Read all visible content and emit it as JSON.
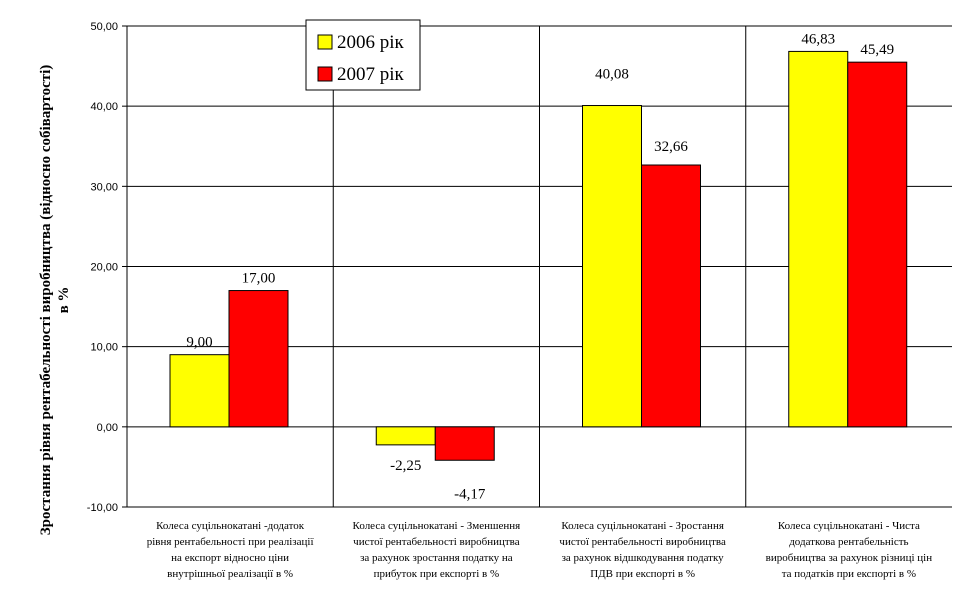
{
  "chart_data": {
    "type": "bar",
    "title": "",
    "ylabel": "Зростання рівня рентабельності виробництва (відносно собівартості) в %",
    "ylabel_lines": [
      "Зростання рівня рентабельності виробництва (відносно собівартості)",
      "в %"
    ],
    "xlabel": "",
    "ylim": [
      -10,
      50
    ],
    "yticks": [
      "-10,00",
      "0,00",
      "10,00",
      "20,00",
      "30,00",
      "40,00",
      "50,00"
    ],
    "grid": true,
    "legend_position": "top-left",
    "categories": [
      [
        "Колеса суцільнокатані -додаток",
        "рівня рентабельності при реалізації",
        "на експорт відносно ціни",
        "внутрішньої реалізації в %"
      ],
      [
        "Колеса суцільнокатані - Зменшення",
        "чистої рентабельності виробництва",
        "за рахунок зростання податку на",
        "прибуток при експорті в %"
      ],
      [
        "Колеса суцільнокатані - Зростання",
        "чистої рентабельності виробництва",
        "за рахунок відшкодування податку",
        "ПДВ при експорті в %"
      ],
      [
        "Колеса суцільнокатані - Чиста",
        "додаткова рентабельність",
        "виробництва за рахунок різниці цін",
        "та податків при експорті в %"
      ]
    ],
    "series": [
      {
        "name": "2006 рік",
        "color": "#FFFF00",
        "values": [
          9.0,
          -2.25,
          40.08,
          46.83
        ],
        "labels": [
          "9,00",
          "-2,25",
          "40,08",
          "46,83"
        ]
      },
      {
        "name": "2007 рік",
        "color": "#FF0000",
        "values": [
          17.0,
          -4.17,
          32.66,
          45.49
        ],
        "labels": [
          "17,00",
          "-4,17",
          "32,66",
          "45,49"
        ]
      }
    ]
  }
}
